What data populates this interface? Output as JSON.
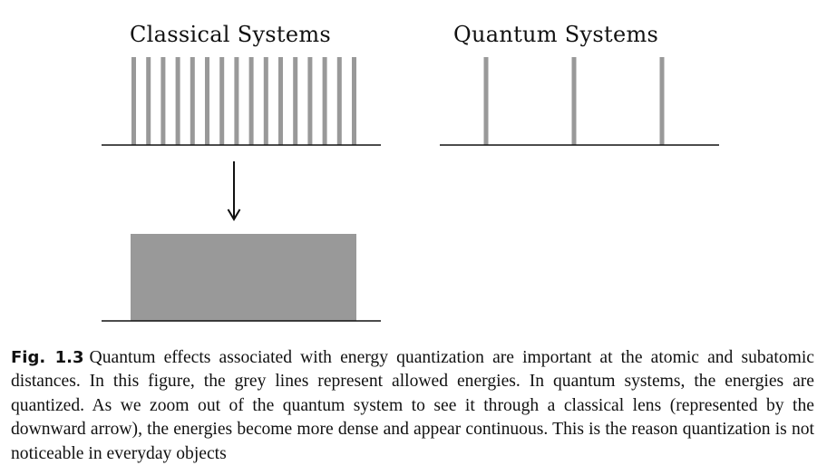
{
  "panels": {
    "classical": {
      "title": "Classical Systems",
      "levels": 16
    },
    "quantum": {
      "title": "Quantum Systems",
      "levels": 3
    }
  },
  "colors": {
    "level_line": "#999999",
    "axis": "#111111",
    "continuum": "#999999"
  },
  "caption": {
    "label": "Fig. 1.3",
    "text": "Quantum effects associated with energy quantization are important at the atomic and subatomic distances. In this figure, the grey lines represent allowed energies. In quantum systems, the energies are quantized. As we zoom out of the quantum system to see it through a classical lens (represented by the downward arrow), the energies become more dense and appear continuous. This is the reason quantization is not noticeable in everyday objects"
  }
}
